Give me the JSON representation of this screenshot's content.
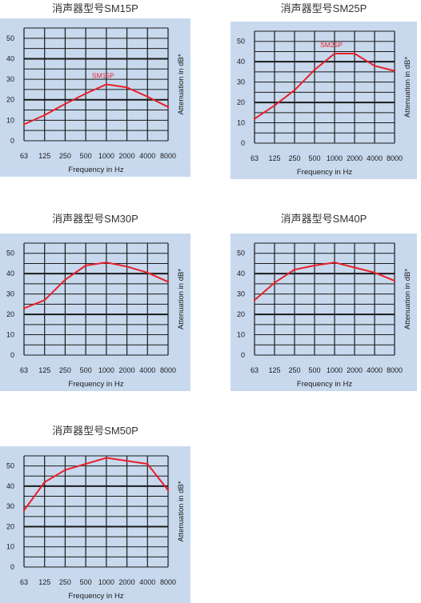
{
  "chart_data": [
    {
      "type": "line",
      "title": "消声器型号SM15P",
      "categories": [
        "63",
        "125",
        "250",
        "500",
        "1000",
        "2000",
        "4000",
        "8000"
      ],
      "yticks": [
        "0",
        "10",
        "20",
        "30",
        "40",
        "50"
      ],
      "ylim": [
        0,
        55
      ],
      "xlabel": "Frequency in Hz",
      "ylabel": "Attenuation in dB*",
      "series": [
        {
          "name": "SM15P",
          "values": [
            8,
            12.5,
            18,
            23,
            27.5,
            26,
            21.5,
            16.5
          ]
        }
      ],
      "background": "#c8d9ee",
      "line_color": "#e8202a"
    },
    {
      "type": "line",
      "title": "消声器型号SM25P",
      "categories": [
        "63",
        "125",
        "250",
        "500",
        "1000",
        "2000",
        "4000",
        "8000"
      ],
      "yticks": [
        "0",
        "10",
        "20",
        "30",
        "40",
        "50"
      ],
      "ylim": [
        0,
        55
      ],
      "xlabel": "Frequency in Hz",
      "ylabel": "Attenuation in dB*",
      "series": [
        {
          "name": "SM25P",
          "values": [
            12,
            18.5,
            26,
            36,
            44,
            44,
            38,
            35.5
          ]
        }
      ],
      "background": "#c8d9ee",
      "line_color": "#e8202a"
    },
    {
      "type": "line",
      "title": "消声器型号SM30P",
      "categories": [
        "63",
        "125",
        "250",
        "500",
        "1000",
        "2000",
        "4000",
        "8000"
      ],
      "yticks": [
        "0",
        "10",
        "20",
        "30",
        "40",
        "50"
      ],
      "ylim": [
        0,
        55
      ],
      "xlabel": "Frequency in Hz",
      "ylabel": "Attenuation in dB*",
      "series": [
        {
          "values": [
            23,
            27,
            37,
            44,
            45.5,
            43.5,
            40.5,
            36
          ]
        }
      ],
      "background": "#c8d9ee",
      "line_color": "#e8202a"
    },
    {
      "type": "line",
      "title": "消声器型号SM40P",
      "categories": [
        "63",
        "125",
        "250",
        "500",
        "1000",
        "2000",
        "4000",
        "8000"
      ],
      "yticks": [
        "0",
        "10",
        "20",
        "30",
        "40",
        "50"
      ],
      "ylim": [
        0,
        55
      ],
      "xlabel": "Frequency in Hz",
      "ylabel": "Attenuation in dB*",
      "series": [
        {
          "values": [
            27,
            35.5,
            42,
            44,
            45.5,
            43,
            40.5,
            36.5
          ]
        }
      ],
      "background": "#c8d9ee",
      "line_color": "#e8202a"
    },
    {
      "type": "line",
      "title": "消声器型号SM50P",
      "categories": [
        "63",
        "125",
        "250",
        "500",
        "1000",
        "2000",
        "4000",
        "8000"
      ],
      "yticks": [
        "0",
        "10",
        "20",
        "30",
        "40",
        "50"
      ],
      "ylim": [
        0,
        55
      ],
      "xlabel": "Frequency in Hz",
      "ylabel": "Attenuation in dB*",
      "series": [
        {
          "values": [
            28,
            42,
            48,
            51,
            54,
            52.5,
            51,
            38
          ]
        }
      ],
      "background": "#c8d9ee",
      "line_color": "#e8202a"
    }
  ]
}
